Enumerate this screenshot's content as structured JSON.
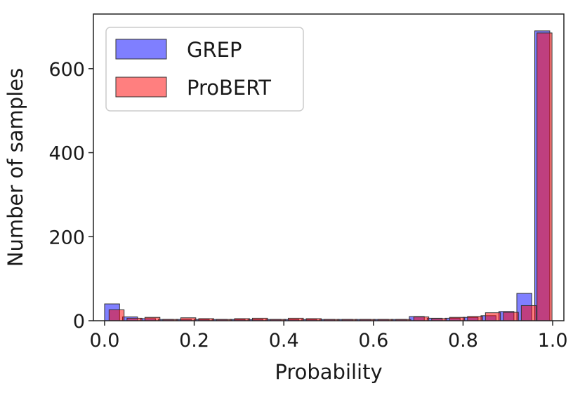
{
  "chart_data": {
    "type": "bar",
    "title": "",
    "xlabel": "Probability",
    "ylabel": "Number of samples",
    "xlim": [
      -0.025,
      1.025
    ],
    "ylim": [
      0,
      730
    ],
    "xticks": [
      0.0,
      0.2,
      0.4,
      0.6,
      0.8,
      1.0
    ],
    "xtick_labels": [
      "0.0",
      "0.2",
      "0.4",
      "0.6",
      "0.8",
      "1.0"
    ],
    "yticks": [
      0,
      200,
      400,
      600
    ],
    "ytick_labels": [
      "0",
      "200",
      "400",
      "600"
    ],
    "grid": false,
    "legend_position": "top-left",
    "bin_width": 0.0335,
    "series": [
      {
        "name": "GREP",
        "color": "#0000ff",
        "opacity": 0.5,
        "bins": [
          {
            "x": 0.0,
            "value": 40
          },
          {
            "x": 0.04,
            "value": 9
          },
          {
            "x": 0.08,
            "value": 5
          },
          {
            "x": 0.12,
            "value": 3
          },
          {
            "x": 0.16,
            "value": 3
          },
          {
            "x": 0.2,
            "value": 3
          },
          {
            "x": 0.24,
            "value": 3
          },
          {
            "x": 0.28,
            "value": 3
          },
          {
            "x": 0.32,
            "value": 3
          },
          {
            "x": 0.36,
            "value": 3
          },
          {
            "x": 0.4,
            "value": 3
          },
          {
            "x": 0.44,
            "value": 3
          },
          {
            "x": 0.48,
            "value": 3
          },
          {
            "x": 0.52,
            "value": 3
          },
          {
            "x": 0.56,
            "value": 3
          },
          {
            "x": 0.6,
            "value": 3
          },
          {
            "x": 0.64,
            "value": 3
          },
          {
            "x": 0.68,
            "value": 10
          },
          {
            "x": 0.72,
            "value": 6
          },
          {
            "x": 0.76,
            "value": 6
          },
          {
            "x": 0.8,
            "value": 8
          },
          {
            "x": 0.84,
            "value": 12
          },
          {
            "x": 0.88,
            "value": 22
          },
          {
            "x": 0.92,
            "value": 65
          },
          {
            "x": 0.96,
            "value": 690
          }
        ]
      },
      {
        "name": "ProBERT",
        "color": "#ff0000",
        "opacity": 0.5,
        "bins": [
          {
            "x": 0.01,
            "value": 26
          },
          {
            "x": 0.05,
            "value": 6
          },
          {
            "x": 0.09,
            "value": 8
          },
          {
            "x": 0.13,
            "value": 3
          },
          {
            "x": 0.17,
            "value": 7
          },
          {
            "x": 0.21,
            "value": 5
          },
          {
            "x": 0.25,
            "value": 3
          },
          {
            "x": 0.29,
            "value": 5
          },
          {
            "x": 0.33,
            "value": 6
          },
          {
            "x": 0.37,
            "value": 3
          },
          {
            "x": 0.41,
            "value": 6
          },
          {
            "x": 0.45,
            "value": 5
          },
          {
            "x": 0.49,
            "value": 3
          },
          {
            "x": 0.53,
            "value": 3
          },
          {
            "x": 0.57,
            "value": 3
          },
          {
            "x": 0.61,
            "value": 3
          },
          {
            "x": 0.65,
            "value": 3
          },
          {
            "x": 0.69,
            "value": 9
          },
          {
            "x": 0.73,
            "value": 5
          },
          {
            "x": 0.77,
            "value": 8
          },
          {
            "x": 0.81,
            "value": 10
          },
          {
            "x": 0.85,
            "value": 19
          },
          {
            "x": 0.89,
            "value": 20
          },
          {
            "x": 0.93,
            "value": 36
          },
          {
            "x": 0.965,
            "value": 685
          }
        ]
      }
    ]
  }
}
